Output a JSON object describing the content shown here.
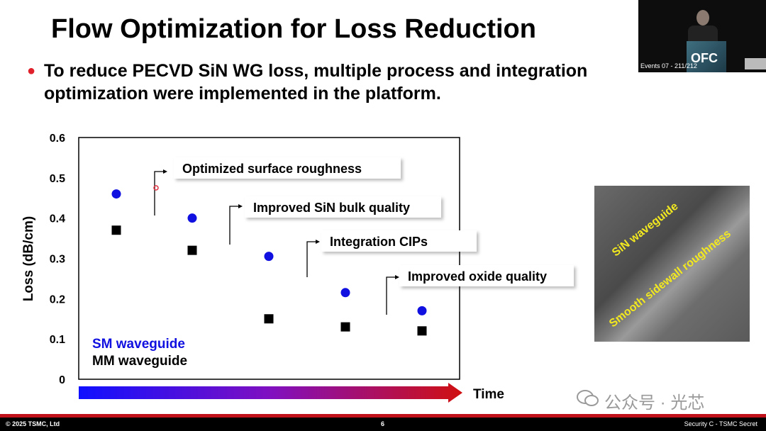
{
  "slide": {
    "title": "Flow Optimization for Loss Reduction",
    "bullet": "To reduce PECVD SiN WG loss, multiple process and integration optimization were implemented in the platform.",
    "accent_color": "#e0202a"
  },
  "webcam": {
    "label": "Events 07 - 211/212",
    "podium_text": "OFC"
  },
  "image": {
    "label_1": "SiN waveguide",
    "label_2": "Smooth sidewall roughness"
  },
  "watermark": {
    "text": "公众号 · 光芯",
    "icon": "wechat-icon"
  },
  "footer": {
    "copyright": "© 2025 TSMC, Ltd",
    "page": "6",
    "classification": "Security C - TSMC Secret"
  },
  "chart_data": {
    "type": "scatter",
    "xlabel": "Time",
    "ylabel": "Loss (dB/cm)",
    "ylim": [
      0,
      0.6
    ],
    "yticks": [
      "0",
      "0.1",
      "0.2",
      "0.3",
      "0.4",
      "0.5",
      "0.6"
    ],
    "grid": false,
    "legend_placement": "bottom-left",
    "x": [
      1,
      2,
      3,
      4,
      5
    ],
    "series": [
      {
        "name": "SM waveguide",
        "marker": "circle",
        "color": "#1010e0",
        "values": [
          0.46,
          0.4,
          0.305,
          0.215,
          0.17
        ]
      },
      {
        "name": "MM waveguide",
        "marker": "square",
        "color": "#000000",
        "values": [
          0.37,
          0.32,
          0.15,
          0.13,
          0.12
        ]
      }
    ],
    "annotations": [
      {
        "text": "Optimized surface roughness",
        "after_x": 1
      },
      {
        "text": "Improved SiN bulk quality",
        "after_x": 2
      },
      {
        "text": "Integration CIPs",
        "after_x": 3
      },
      {
        "text": "Improved oxide quality",
        "after_x": 4
      }
    ],
    "time_arrow_colors": [
      "#1010ff",
      "#8010c0",
      "#d01010"
    ]
  }
}
